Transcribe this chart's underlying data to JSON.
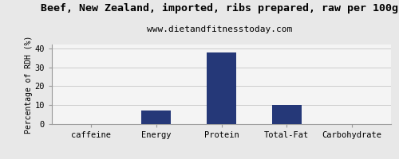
{
  "title": "Beef, New Zealand, imported, ribs prepared, raw per 100g",
  "subtitle": "www.dietandfitnesstoday.com",
  "categories": [
    "caffeine",
    "Energy",
    "Protein",
    "Total-Fat",
    "Carbohydrate"
  ],
  "values": [
    0,
    7,
    38,
    10,
    0
  ],
  "bar_color": "#253878",
  "background_color": "#e8e8e8",
  "plot_background_color": "#f4f4f4",
  "ylabel": "Percentage of RDH (%)",
  "ylim": [
    0,
    42
  ],
  "yticks": [
    0,
    10,
    20,
    30,
    40
  ],
  "title_fontsize": 9.5,
  "subtitle_fontsize": 8,
  "ylabel_fontsize": 7,
  "tick_fontsize": 7.5,
  "grid_color": "#cccccc",
  "bar_width": 0.45
}
